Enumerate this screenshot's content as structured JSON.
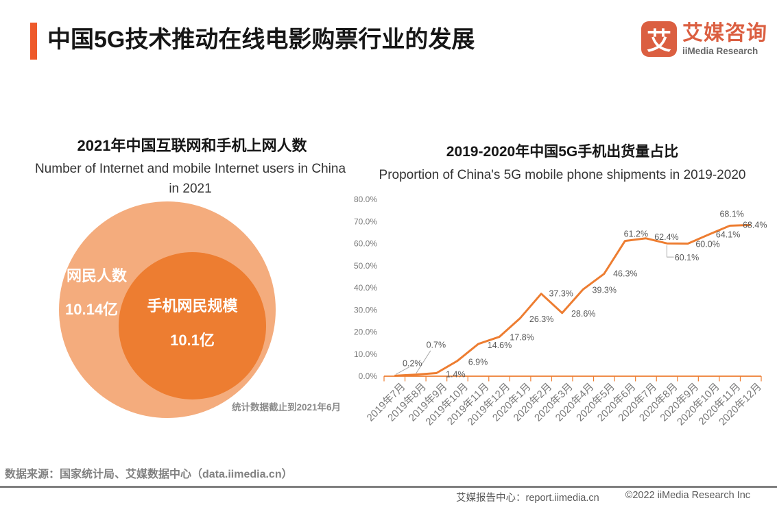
{
  "header": {
    "title": "中国5G技术推动在线电影购票行业的发展",
    "logo_glyph": "艾",
    "logo_cn": "艾媒咨询",
    "logo_en": "iiMedia Research",
    "accent_color": "#EE5A2B",
    "logo_color": "#DB5F41"
  },
  "venn": {
    "title_cn": "2021年中国互联网和手机上网人数",
    "subtitle_en_line1": "Number of Internet and mobile Internet users in China",
    "subtitle_en_line2": "in 2021",
    "outer_label": "网民人数",
    "outer_value": "10.14亿",
    "inner_label": "手机网民规模",
    "inner_value": "10.1亿",
    "note": "统计数据截止到2021年6月",
    "outer_color": "#F4AC7D",
    "inner_color": "#ED7D31"
  },
  "chart": {
    "title_cn": "2019-2020年中国5G手机出货量占比",
    "subtitle_en": "Proportion of China's 5G mobile phone shipments in 2019-2020"
  },
  "chart_data": {
    "type": "line",
    "categories": [
      "2019年7月",
      "2019年8月",
      "2019年9月",
      "2019年10月",
      "2019年11月",
      "2019年12月",
      "2020年1月",
      "2020年2月",
      "2020年3月",
      "2020年4月",
      "2020年5月",
      "2020年6月",
      "2020年7月",
      "2020年8月",
      "2020年9月",
      "2020年10月",
      "2020年11月",
      "2020年12月"
    ],
    "values": [
      0.2,
      0.7,
      1.4,
      6.9,
      14.6,
      17.8,
      26.3,
      37.3,
      28.6,
      39.3,
      46.3,
      61.2,
      62.4,
      60.1,
      60.0,
      64.1,
      68.1,
      68.4
    ],
    "title": "2019-2020年中国5G手机出货量占比",
    "ylim": [
      0,
      80
    ],
    "ytick_step": 10,
    "grid": false,
    "legend": false,
    "line_color": "#ED7D31",
    "data_label_color": "#595959",
    "axis_color": "#ED7D31",
    "tick_label_color": "#7a7a7a",
    "leader_line_color": "#A6A6A6"
  },
  "footer": {
    "source": "数据来源：国家统计局、艾媒数据中心（data.iimedia.cn）",
    "report_center": "艾媒报告中心：report.iimedia.cn",
    "copyright": "©2022 iiMedia Research Inc"
  }
}
